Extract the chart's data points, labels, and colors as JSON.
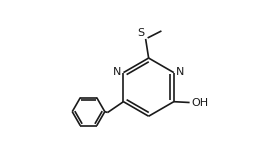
{
  "background_color": "#ffffff",
  "line_color": "#1a1a1a",
  "text_color": "#1a1a1a",
  "label_S": "S",
  "label_N1": "N",
  "label_N2": "N",
  "label_OH": "OH",
  "font_size_atoms": 8.0,
  "line_width": 1.2,
  "figsize": [
    2.64,
    1.51
  ],
  "dpi": 100
}
